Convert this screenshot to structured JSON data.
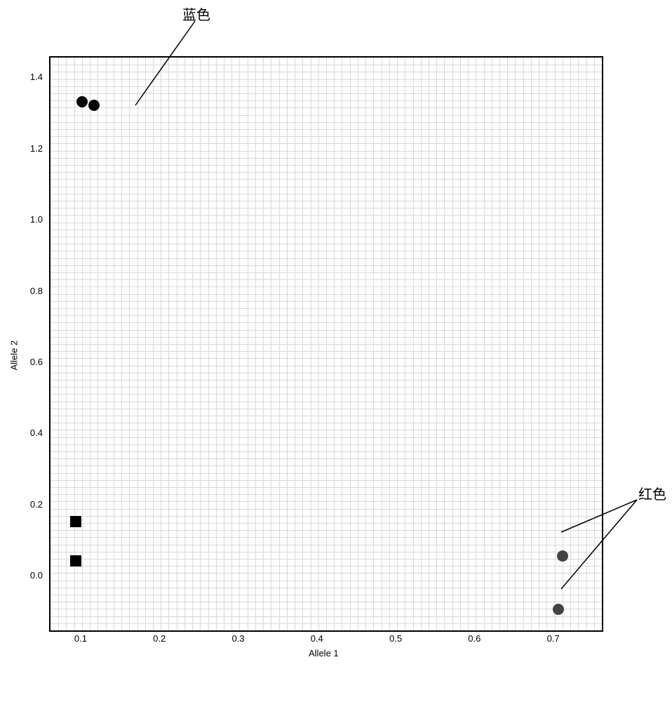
{
  "chart": {
    "type": "scatter",
    "xlabel": "Allele 1",
    "ylabel": "Allele 2",
    "label_fontsize": 13,
    "callouts": {
      "blue_label": "蓝色",
      "red_label": "红色"
    },
    "xlim": [
      0.06,
      0.76
    ],
    "ylim": [
      -0.15,
      1.46
    ],
    "xticks": [
      0.1,
      0.2,
      0.3,
      0.4,
      0.5,
      0.6,
      0.7
    ],
    "yticks": [
      0.0,
      0.2,
      0.4,
      0.6,
      0.8,
      1.0,
      1.2,
      1.4
    ],
    "grid_minor_count_x": 70,
    "grid_minor_count_y": 80,
    "background_color": "#ffffff",
    "grid_color": "#d8d8d8",
    "border_color": "#000000",
    "points": {
      "blue_cluster": {
        "marker": "circle",
        "color": "#000000",
        "size": 16,
        "data": [
          {
            "x": 0.1,
            "y": 1.335
          },
          {
            "x": 0.115,
            "y": 1.325
          }
        ]
      },
      "red_cluster": {
        "marker": "circle",
        "color": "#444444",
        "size": 16,
        "data": [
          {
            "x": 0.71,
            "y": 0.06
          },
          {
            "x": 0.705,
            "y": -0.09
          }
        ]
      },
      "square_cluster": {
        "marker": "square",
        "color": "#000000",
        "size": 16,
        "data": [
          {
            "x": 0.092,
            "y": 0.155
          },
          {
            "x": 0.092,
            "y": 0.045
          }
        ]
      }
    }
  }
}
